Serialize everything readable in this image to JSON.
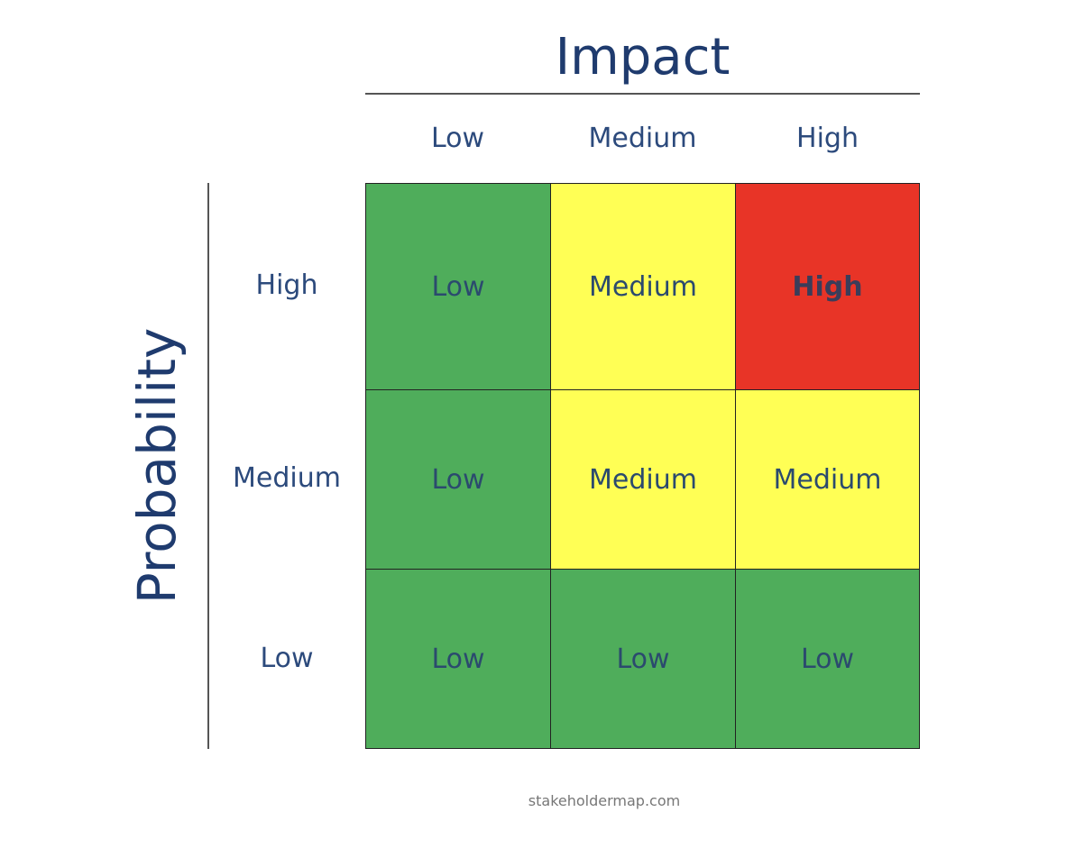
{
  "colors": {
    "low": "#4fad5b",
    "medium": "#ffff55",
    "high": "#e83427",
    "title": "#1f3b6e",
    "label": "#2c4a7c"
  },
  "matrix": {
    "x_title": "Impact",
    "y_title": "Probability",
    "columns": [
      "Low",
      "Medium",
      "High"
    ],
    "rows": [
      "High",
      "Medium",
      "Low"
    ],
    "cells": [
      [
        {
          "label": "Low",
          "level": "low"
        },
        {
          "label": "Medium",
          "level": "medium"
        },
        {
          "label": "High",
          "level": "high"
        }
      ],
      [
        {
          "label": "Low",
          "level": "low"
        },
        {
          "label": "Medium",
          "level": "medium"
        },
        {
          "label": "Medium",
          "level": "medium"
        }
      ],
      [
        {
          "label": "Low",
          "level": "low"
        },
        {
          "label": "Low",
          "level": "low"
        },
        {
          "label": "Low",
          "level": "low"
        }
      ]
    ]
  },
  "footer": "stakeholdermap.com"
}
